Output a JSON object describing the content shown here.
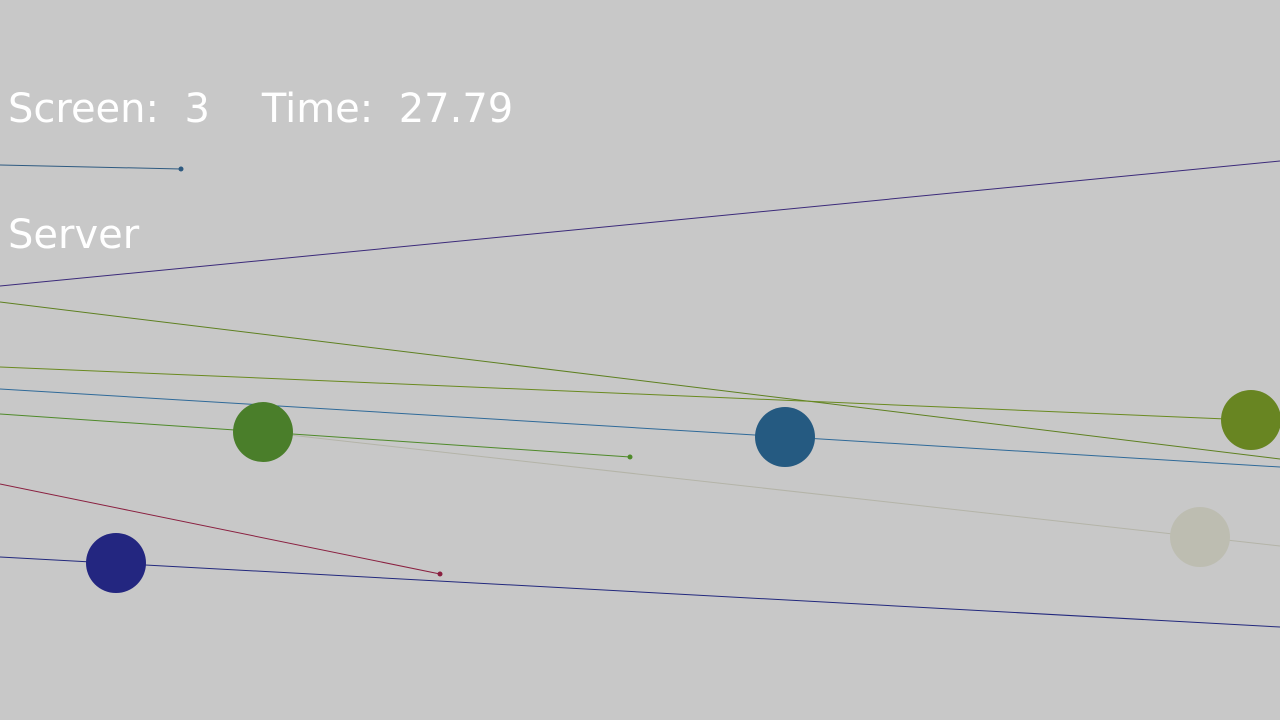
{
  "hud": {
    "screen_label": "Screen:",
    "screen_value": "3",
    "time_label": "Time:",
    "time_value": "27.79",
    "role": "Server"
  },
  "colors": {
    "background": "#c8c8c8",
    "text": "#ffffff"
  }
}
